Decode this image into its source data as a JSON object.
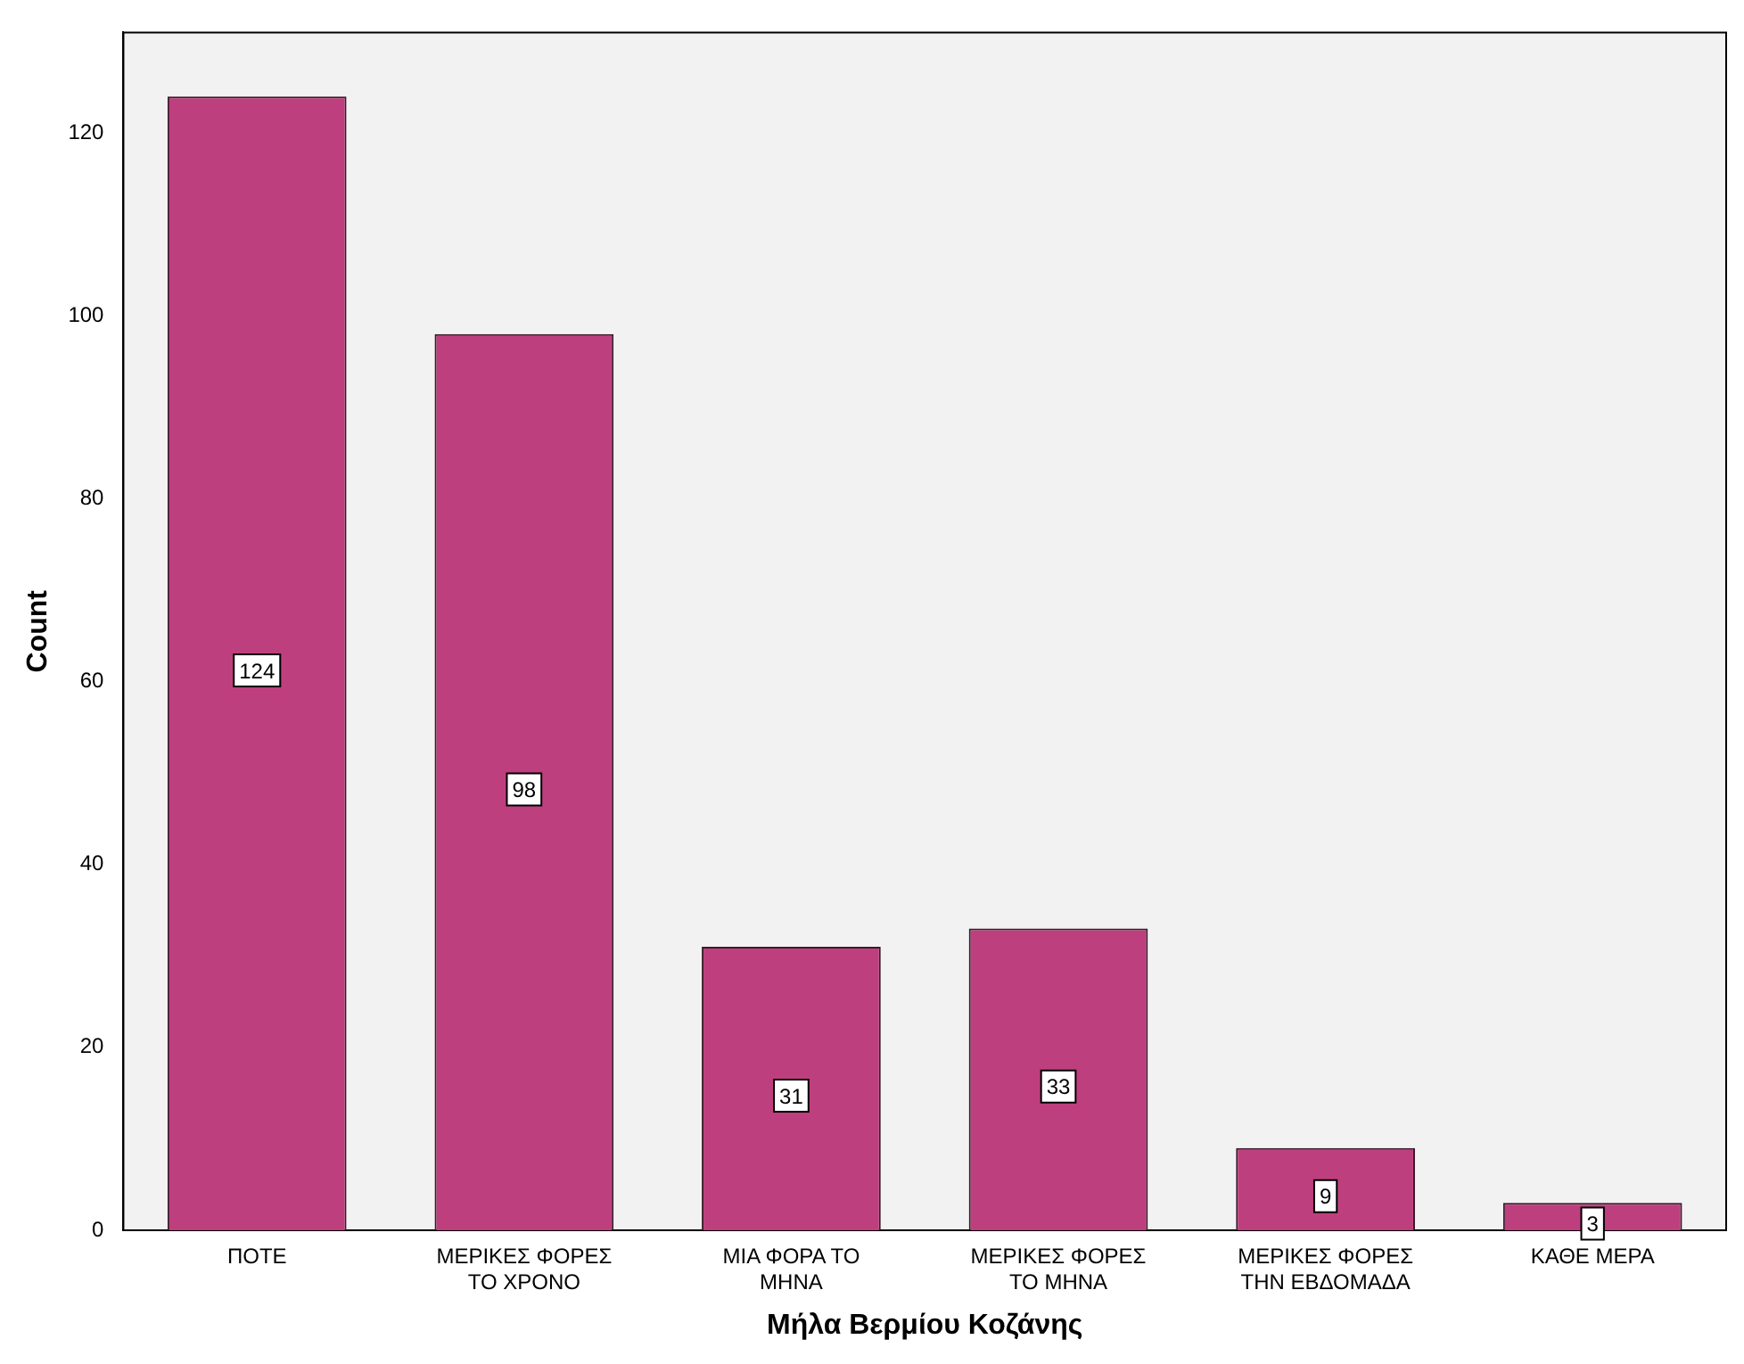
{
  "chart_data": {
    "type": "bar",
    "xlabel": "Μήλα Βερμίου Κοζάνης",
    "ylabel": "Count",
    "categories": [
      "ΠΟΤΕ",
      "ΜΕΡΙΚΕΣ ΦΟΡΕΣ ΤΟ ΧΡΟΝΟ",
      "ΜΙΑ ΦΟΡΑ ΤΟ ΜΗΝΑ",
      "ΜΕΡΙΚΕΣ ΦΟΡΕΣ ΤΟ ΜΗΝΑ",
      "ΜΕΡΙΚΕΣ ΦΟΡΕΣ ΤΗΝ ΕΒΔΟΜΑΔΑ",
      "ΚΑΘΕ ΜΕΡΑ"
    ],
    "values": [
      124,
      98,
      31,
      33,
      9,
      3
    ],
    "color": "#be3f7e",
    "ylim": [
      0,
      131
    ],
    "yticks": [
      0,
      20,
      40,
      60,
      80,
      100,
      120
    ],
    "grid": false,
    "data_labels": true
  }
}
